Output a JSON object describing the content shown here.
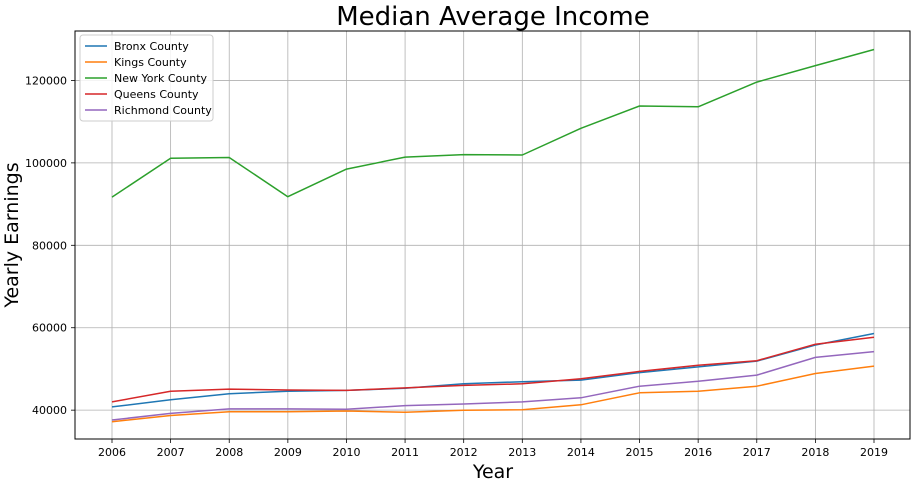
{
  "chart_data": {
    "type": "line",
    "title": "Median Average Income",
    "xlabel": "Year",
    "ylabel": "Yearly Earnings",
    "x": [
      "2006",
      "2007",
      "2008",
      "2009",
      "2010",
      "2011",
      "2012",
      "2013",
      "2014",
      "2015",
      "2016",
      "2017",
      "2018",
      "2019"
    ],
    "ylim": [
      33000,
      132000
    ],
    "yticks": [
      40000,
      60000,
      80000,
      100000,
      120000
    ],
    "grid": true,
    "legend_position": "top-left",
    "series": [
      {
        "name": "Bronx County",
        "color": "#1f77b4",
        "values": [
          40800,
          42500,
          44000,
          44600,
          44800,
          45300,
          46400,
          46900,
          47300,
          49100,
          50500,
          51900,
          55800,
          58600
        ]
      },
      {
        "name": "Kings County",
        "color": "#ff7f0e",
        "values": [
          37200,
          38700,
          39600,
          39600,
          39800,
          39500,
          40000,
          40100,
          41300,
          44200,
          44600,
          45800,
          48900,
          50700
        ]
      },
      {
        "name": "New York County",
        "color": "#2ca02c",
        "values": [
          91700,
          101100,
          101300,
          91800,
          98500,
          101400,
          102000,
          101900,
          108400,
          113800,
          113600,
          119600,
          123600,
          127500
        ]
      },
      {
        "name": "Queens County",
        "color": "#d62728",
        "values": [
          42000,
          44600,
          45100,
          44900,
          44800,
          45400,
          46000,
          46400,
          47600,
          49400,
          50900,
          52000,
          56000,
          57700
        ]
      },
      {
        "name": "Richmond County",
        "color": "#9467bd",
        "values": [
          37600,
          39200,
          40300,
          40300,
          40200,
          41100,
          41500,
          42000,
          43000,
          45800,
          47000,
          48500,
          52800,
          54200
        ]
      }
    ]
  }
}
